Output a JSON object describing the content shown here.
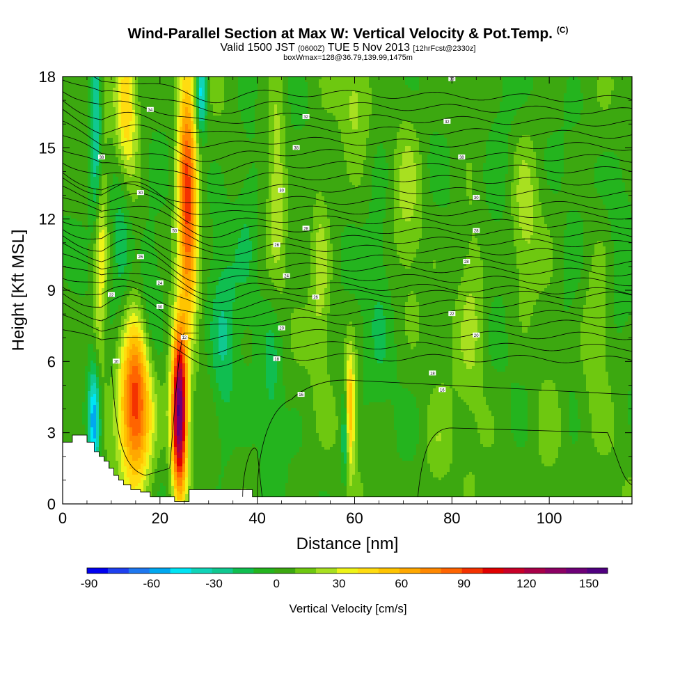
{
  "header": {
    "title": "Wind-Parallel Section at Max W: Vertical Velocity & Pot.Temp.",
    "copyright": "(C)",
    "valid_prefix": "Valid 1500 JST",
    "valid_utc": "(0600Z)",
    "valid_date": "TUE 5 Nov 2013",
    "forecast": "[12hrFcst@2330z]",
    "boxinfo": "boxWmax=128@36.79,139.99,1475m"
  },
  "chart_data": {
    "type": "heatmap",
    "xlabel": "Distance [nm]",
    "ylabel": "Height [Kft MSL]",
    "xlim": [
      0,
      117
    ],
    "ylim": [
      0,
      18
    ],
    "x_ticks": [
      0,
      20,
      40,
      60,
      80,
      100
    ],
    "y_ticks": [
      0,
      3,
      6,
      9,
      12,
      15,
      18
    ],
    "colorbar": {
      "title": "Vertical Velocity [cm/s]",
      "levels": [
        -90,
        -80,
        -70,
        -60,
        -50,
        -40,
        -30,
        -20,
        -10,
        0,
        10,
        20,
        30,
        40,
        50,
        60,
        70,
        80,
        90,
        100,
        110,
        120,
        130,
        140,
        150,
        160
      ],
      "tick_labels": [
        "-90",
        "-60",
        "-30",
        "0",
        "30",
        "60",
        "90",
        "120",
        "150"
      ],
      "tick_values": [
        -90,
        -60,
        -30,
        0,
        30,
        60,
        90,
        120,
        150
      ],
      "colors": [
        "#0000f0",
        "#1e40f0",
        "#1e78f0",
        "#00a8f0",
        "#00e4f4",
        "#10d4b8",
        "#10c890",
        "#10be50",
        "#24b41e",
        "#3ca810",
        "#6ec810",
        "#a8e020",
        "#eef418",
        "#ffdc10",
        "#ffc400",
        "#ffa800",
        "#ff8800",
        "#ff6400",
        "#f43200",
        "#e00000",
        "#c80028",
        "#a80048",
        "#8c0064",
        "#6e0078",
        "#500080"
      ]
    },
    "terrain_outline_nm_kft": [
      [
        0,
        2.6
      ],
      [
        2,
        2.6
      ],
      [
        2,
        2.9
      ],
      [
        5,
        2.9
      ],
      [
        5,
        2.6
      ],
      [
        6.5,
        2.6
      ],
      [
        6.5,
        2.2
      ],
      [
        7.5,
        2.2
      ],
      [
        7.5,
        2.0
      ],
      [
        8.5,
        2.0
      ],
      [
        8.5,
        1.8
      ],
      [
        9.5,
        1.8
      ],
      [
        9.5,
        1.5
      ],
      [
        10.5,
        1.5
      ],
      [
        10.5,
        1.2
      ],
      [
        11.5,
        1.2
      ],
      [
        11.5,
        1.0
      ],
      [
        12.5,
        1.0
      ],
      [
        12.5,
        0.8
      ],
      [
        14,
        0.8
      ],
      [
        14,
        0.6
      ],
      [
        16,
        0.6
      ],
      [
        16,
        0.5
      ],
      [
        18,
        0.5
      ],
      [
        18,
        0.3
      ],
      [
        23,
        0.3
      ],
      [
        23,
        0.1
      ],
      [
        26,
        0.1
      ],
      [
        26,
        0.6
      ],
      [
        29,
        0.6
      ],
      [
        39,
        0.6
      ],
      [
        39,
        0.3
      ],
      [
        117,
        0.3
      ]
    ],
    "w_maxima": [
      {
        "x": 24,
        "y": 3.8,
        "w": 150,
        "sx": 1.1,
        "sy": 2.4
      },
      {
        "x": 15,
        "y": 4.2,
        "w": 100,
        "sx": 2.4,
        "sy": 2.4
      },
      {
        "x": 25.5,
        "y": 14.5,
        "w": 75,
        "sx": 1.4,
        "sy": 3.2
      },
      {
        "x": 26,
        "y": 10.5,
        "w": 50,
        "sx": 1.4,
        "sy": 2.2
      },
      {
        "x": 13,
        "y": 16.8,
        "w": 55,
        "sx": 1.6,
        "sy": 2.2
      },
      {
        "x": 7.5,
        "y": 11.0,
        "w": 50,
        "sx": 1.0,
        "sy": 4.0
      },
      {
        "x": 59,
        "y": 4.0,
        "w": 60,
        "sx": 0.8,
        "sy": 1.7
      },
      {
        "x": 44,
        "y": 14.0,
        "w": 25,
        "sx": 1.3,
        "sy": 3.0
      },
      {
        "x": 53,
        "y": 10.0,
        "w": 22,
        "sx": 1.4,
        "sy": 3.0
      },
      {
        "x": 84,
        "y": 8.5,
        "w": 20,
        "sx": 2.0,
        "sy": 3.0
      },
      {
        "x": 71,
        "y": 13.5,
        "w": 18,
        "sx": 2.0,
        "sy": 2.5
      },
      {
        "x": 95,
        "y": 12.0,
        "w": 18,
        "sx": 2.0,
        "sy": 2.5
      },
      {
        "x": 110,
        "y": 8.0,
        "w": 16,
        "sx": 2.0,
        "sy": 2.5
      },
      {
        "x": 100,
        "y": 3.0,
        "w": 14,
        "sx": 2.5,
        "sy": 2.0
      },
      {
        "x": 60,
        "y": 17.0,
        "w": 18,
        "sx": 2.0,
        "sy": 1.5
      },
      {
        "x": 77,
        "y": 2.0,
        "w": 14,
        "sx": 2.0,
        "sy": 1.5
      }
    ],
    "w_minima": [
      {
        "x": 6.5,
        "y": 3.5,
        "w": -70,
        "sx": 0.9,
        "sy": 1.6
      },
      {
        "x": 7.0,
        "y": 15.0,
        "w": -60,
        "sx": 0.9,
        "sy": 3.5
      },
      {
        "x": 28.5,
        "y": 17.3,
        "w": -55,
        "sx": 0.8,
        "sy": 1.2
      },
      {
        "x": 58,
        "y": 3.0,
        "w": -45,
        "sx": 0.5,
        "sy": 1.5
      },
      {
        "x": 18,
        "y": 8.0,
        "w": -25,
        "sx": 1.8,
        "sy": 2.5
      },
      {
        "x": 33,
        "y": 6.5,
        "w": -20,
        "sx": 1.8,
        "sy": 3.5
      },
      {
        "x": 43,
        "y": 5.0,
        "w": -15,
        "sx": 1.5,
        "sy": 3.0
      },
      {
        "x": 12,
        "y": 12.0,
        "w": -25,
        "sx": 1.5,
        "sy": 3.0
      },
      {
        "x": 38,
        "y": 12.0,
        "w": -15,
        "sx": 2.0,
        "sy": 3.0
      },
      {
        "x": 65,
        "y": 10.0,
        "w": -12,
        "sx": 2.0,
        "sy": 4.0
      },
      {
        "x": 90,
        "y": 15.0,
        "w": -12,
        "sx": 2.5,
        "sy": 3.0
      },
      {
        "x": 115,
        "y": 12.0,
        "w": -10,
        "sx": 2.0,
        "sy": 3.0
      },
      {
        "x": 104,
        "y": 7.0,
        "w": -10,
        "sx": 2.0,
        "sy": 3.0
      }
    ],
    "theta_isentropes_heights_kft": [
      6.3,
      6.8,
      7.3,
      7.8,
      8.2,
      8.6,
      9.0,
      9.4,
      9.8,
      10.2,
      10.6,
      11.0,
      11.4,
      11.8,
      12.2,
      12.6,
      13.0,
      13.5,
      14.0,
      14.5,
      15.0,
      15.5,
      16.0,
      16.5,
      17.0,
      17.5
    ],
    "theta_contour_labels": [
      {
        "text": "10",
        "x": 11,
        "y": 6.0
      },
      {
        "text": "12",
        "x": 25,
        "y": 7.0
      },
      {
        "text": "20",
        "x": 45,
        "y": 7.4
      },
      {
        "text": "18",
        "x": 44,
        "y": 6.1
      },
      {
        "text": "16",
        "x": 49,
        "y": 4.6
      },
      {
        "text": "18",
        "x": 76,
        "y": 5.5
      },
      {
        "text": "16",
        "x": 78,
        "y": 4.8
      },
      {
        "text": "20",
        "x": 85,
        "y": 7.1
      },
      {
        "text": "22",
        "x": 80,
        "y": 8.0
      },
      {
        "text": "22",
        "x": 10,
        "y": 8.8
      },
      {
        "text": "30",
        "x": 20,
        "y": 8.3
      },
      {
        "text": "24",
        "x": 20,
        "y": 9.3
      },
      {
        "text": "26",
        "x": 52,
        "y": 8.7
      },
      {
        "text": "24",
        "x": 46,
        "y": 9.6
      },
      {
        "text": "26",
        "x": 16,
        "y": 10.4
      },
      {
        "text": "26",
        "x": 44,
        "y": 10.9
      },
      {
        "text": "28",
        "x": 83,
        "y": 10.2
      },
      {
        "text": "50",
        "x": 23,
        "y": 11.5
      },
      {
        "text": "28",
        "x": 50,
        "y": 11.6
      },
      {
        "text": "28",
        "x": 85,
        "y": 11.5
      },
      {
        "text": "30",
        "x": 16,
        "y": 13.1
      },
      {
        "text": "30",
        "x": 45,
        "y": 13.2
      },
      {
        "text": "30",
        "x": 85,
        "y": 12.9
      },
      {
        "text": "38",
        "x": 8,
        "y": 14.6
      },
      {
        "text": "38",
        "x": 48,
        "y": 15.0
      },
      {
        "text": "38",
        "x": 82,
        "y": 14.6
      },
      {
        "text": "34",
        "x": 18,
        "y": 16.6
      },
      {
        "text": "32",
        "x": 50,
        "y": 16.3
      },
      {
        "text": "32",
        "x": 79,
        "y": 16.1
      },
      {
        "text": "30",
        "x": 80,
        "y": 17.9
      }
    ]
  }
}
